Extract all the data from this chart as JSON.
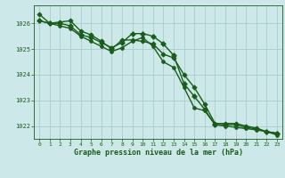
{
  "background_color": "#cce8e8",
  "grid_color": "#aacccc",
  "line_color": "#1a5c1a",
  "title": "Graphe pression niveau de la mer (hPa)",
  "ylim": [
    1021.5,
    1026.7
  ],
  "yticks": [
    1022,
    1023,
    1024,
    1025,
    1026
  ],
  "ytick_labels": [
    "1022",
    "1023",
    "1024",
    "1025",
    "1026"
  ],
  "xtick_labels": [
    "0",
    "1",
    "2",
    "3",
    "4",
    "5",
    "6",
    "7",
    "8",
    "9",
    "10",
    "11",
    "12",
    "13",
    "14",
    "15",
    "16",
    "17",
    "18",
    "19",
    "20",
    "21",
    "22",
    "23"
  ],
  "series": [
    {
      "x": [
        0,
        1,
        2,
        3,
        4,
        5,
        6,
        7,
        8,
        9,
        10,
        11,
        12,
        13,
        14,
        15,
        16,
        17,
        18,
        19,
        20,
        21,
        22,
        23
      ],
      "y": [
        1026.35,
        1026.0,
        1026.05,
        1026.1,
        1025.7,
        1025.55,
        1025.3,
        1025.0,
        1025.35,
        1025.35,
        1025.3,
        1025.2,
        1024.8,
        1024.65,
        1024.0,
        1023.5,
        1022.85,
        1022.1,
        1022.1,
        1022.1,
        1022.0,
        1021.92,
        1021.78,
        1021.72
      ],
      "marker": "D",
      "markersize": 2.5,
      "linewidth": 1.0
    },
    {
      "x": [
        0,
        1,
        2,
        3,
        4,
        5,
        6,
        7,
        8,
        9,
        10,
        11,
        12,
        13,
        14,
        15,
        16,
        17,
        18,
        19,
        20,
        21,
        22,
        23
      ],
      "y": [
        1026.1,
        1026.0,
        1026.0,
        1025.9,
        1025.55,
        1025.45,
        1025.25,
        1025.05,
        1025.25,
        1025.6,
        1025.6,
        1025.5,
        1025.2,
        1024.75,
        1023.65,
        1023.15,
        1022.65,
        1022.05,
        1022.05,
        1022.05,
        1021.95,
        1021.88,
        1021.78,
        1021.72
      ],
      "marker": "P",
      "markersize": 3.5,
      "linewidth": 1.0
    },
    {
      "x": [
        0,
        1,
        2,
        3,
        4,
        5,
        6,
        7,
        8,
        9,
        10,
        11,
        12,
        13,
        14,
        15,
        16,
        17,
        18,
        19,
        20,
        21,
        22,
        23
      ],
      "y": [
        1026.1,
        1026.0,
        1025.9,
        1025.8,
        1025.5,
        1025.3,
        1025.1,
        1024.9,
        1025.05,
        1025.3,
        1025.45,
        1025.1,
        1024.5,
        1024.28,
        1023.5,
        1022.7,
        1022.6,
        1022.05,
        1022.0,
        1021.95,
        1021.9,
        1021.85,
        1021.78,
        1021.65
      ],
      "marker": "o",
      "markersize": 2.5,
      "linewidth": 1.0
    }
  ]
}
